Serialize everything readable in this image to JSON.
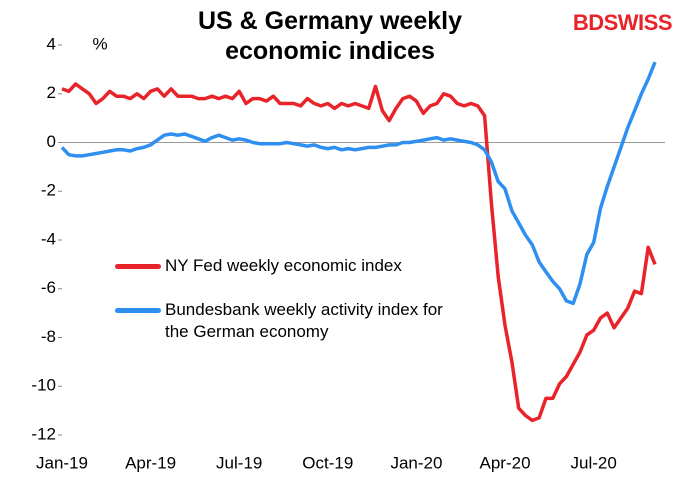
{
  "chart_data": {
    "type": "line",
    "title": "US & Germany weekly economic indices",
    "logo": "BDSWISS",
    "ylabel": "%",
    "categories": [
      "Jan-19",
      null,
      null,
      null,
      null,
      null,
      null,
      null,
      null,
      null,
      null,
      null,
      null,
      "Apr-19",
      null,
      null,
      null,
      null,
      null,
      null,
      null,
      null,
      null,
      null,
      null,
      null,
      "Jul-19",
      null,
      null,
      null,
      null,
      null,
      null,
      null,
      null,
      null,
      null,
      null,
      null,
      "Oct-19",
      null,
      null,
      null,
      null,
      null,
      null,
      null,
      null,
      null,
      null,
      null,
      null,
      "Jan-20",
      null,
      null,
      null,
      null,
      null,
      null,
      null,
      null,
      null,
      null,
      null,
      null,
      "Apr-20",
      null,
      null,
      null,
      null,
      null,
      null,
      null,
      null,
      null,
      null,
      null,
      null,
      "Jul-20",
      null,
      null,
      null,
      null,
      null,
      null,
      null,
      null,
      null
    ],
    "series": [
      {
        "name": "NY Fed weekly economic index",
        "color": "#e8242a",
        "values": [
          2.2,
          2.1,
          2.4,
          2.2,
          2.0,
          1.6,
          1.8,
          2.1,
          1.9,
          1.9,
          1.8,
          2.0,
          1.8,
          2.1,
          2.2,
          1.9,
          2.2,
          1.9,
          1.9,
          1.9,
          1.8,
          1.8,
          1.9,
          1.8,
          1.9,
          1.8,
          2.1,
          1.6,
          1.8,
          1.8,
          1.7,
          1.9,
          1.6,
          1.6,
          1.6,
          1.5,
          1.8,
          1.6,
          1.5,
          1.6,
          1.4,
          1.6,
          1.5,
          1.6,
          1.5,
          1.4,
          2.3,
          1.3,
          0.9,
          1.4,
          1.8,
          1.9,
          1.7,
          1.2,
          1.5,
          1.6,
          2.0,
          1.9,
          1.6,
          1.5,
          1.6,
          1.5,
          1.1,
          -2.5,
          -5.5,
          -7.5,
          -9.0,
          -10.9,
          -11.2,
          -11.4,
          -11.3,
          -10.5,
          -10.5,
          -9.9,
          -9.6,
          -9.1,
          -8.6,
          -7.9,
          -7.7,
          -7.2,
          -7.0,
          -7.6,
          -7.2,
          -6.8,
          -6.1,
          -6.2,
          -4.3,
          -5.0
        ]
      },
      {
        "name": "Bundesbank weekly activity index for the German economy",
        "color": "#2e8ff0",
        "values": [
          -0.2,
          -0.5,
          -0.55,
          -0.55,
          -0.5,
          -0.45,
          -0.4,
          -0.35,
          -0.3,
          -0.3,
          -0.35,
          -0.25,
          -0.2,
          -0.1,
          0.1,
          0.3,
          0.35,
          0.3,
          0.35,
          0.25,
          0.15,
          0.05,
          0.2,
          0.3,
          0.2,
          0.1,
          0.15,
          0.1,
          0,
          -0.05,
          -0.05,
          -0.05,
          -0.05,
          0,
          -0.05,
          -0.1,
          -0.15,
          -0.1,
          -0.2,
          -0.25,
          -0.2,
          -0.3,
          -0.25,
          -0.3,
          -0.25,
          -0.2,
          -0.2,
          -0.15,
          -0.1,
          -0.1,
          0,
          0,
          0.05,
          0.1,
          0.15,
          0.2,
          0.1,
          0.15,
          0.1,
          0.05,
          0,
          -0.1,
          -0.3,
          -0.8,
          -1.6,
          -1.9,
          -2.8,
          -3.3,
          -3.8,
          -4.2,
          -4.9,
          -5.3,
          -5.7,
          -6.0,
          -6.5,
          -6.6,
          -5.8,
          -4.6,
          -4.1,
          -2.7,
          -1.8,
          -1.0,
          -0.2,
          0.6,
          1.3,
          2.0,
          2.6,
          3.3
        ]
      }
    ],
    "ylim": [
      -12,
      4
    ],
    "yticks": [
      -12,
      -10,
      -8,
      -6,
      -4,
      -2,
      0,
      2,
      4
    ]
  }
}
